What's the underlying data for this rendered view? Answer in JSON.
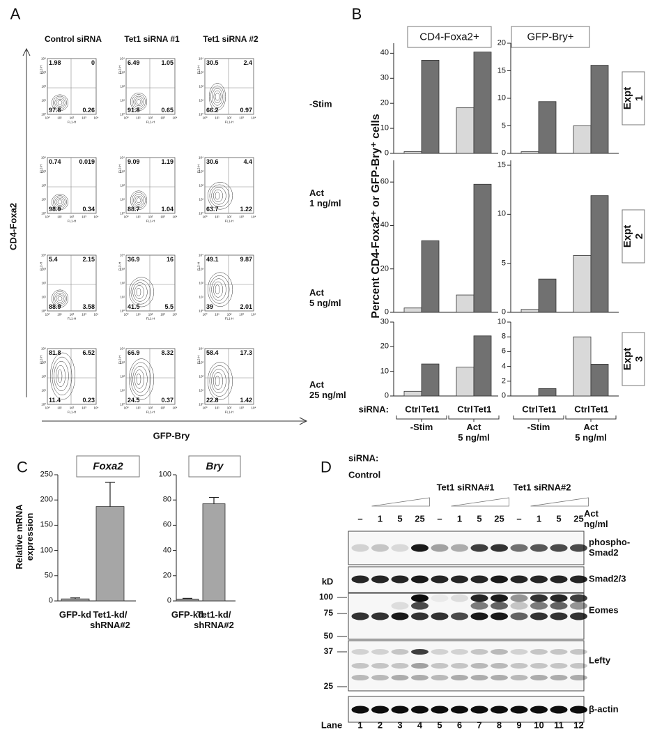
{
  "panel_a": {
    "label": "A",
    "columns": [
      "Control siRNA",
      "Tet1 siRNA #1",
      "Tet1 siRNA #2"
    ],
    "rows": [
      "-Stim",
      "Act\n1 ng/ml",
      "Act\n5 ng/ml",
      "Act\n25 ng/ml"
    ],
    "y_axis": "CD4-Foxa2",
    "x_axis": "GFP-Bry",
    "plot_x_label": "FL1-H",
    "plot_y_label": "FL2-H",
    "plot_ticks": [
      "10⁰",
      "10¹",
      "10²",
      "10³",
      "10⁴"
    ],
    "quadrants": [
      [
        [
          1.98,
          0,
          97.8,
          0.26
        ],
        [
          6.49,
          1.05,
          91.8,
          0.65
        ],
        [
          30.5,
          2.4,
          66.2,
          0.97
        ]
      ],
      [
        [
          0.74,
          0.019,
          98.9,
          0.34
        ],
        [
          9.09,
          1.19,
          88.7,
          1.04
        ],
        [
          30.6,
          4.4,
          63.7,
          1.22
        ]
      ],
      [
        [
          5.4,
          2.15,
          88.9,
          3.58
        ],
        [
          36.9,
          16,
          41.5,
          5.5
        ],
        [
          49.1,
          9.87,
          39,
          2.01
        ]
      ],
      [
        [
          81.8,
          6.52,
          11.4,
          0.23
        ],
        [
          66.9,
          8.32,
          24.5,
          0.37
        ],
        [
          58.4,
          17.3,
          22.8,
          1.42
        ]
      ]
    ]
  },
  "panel_b": {
    "label": "B",
    "y_label": "Percent CD4-Foxa2⁺ or GFP-Bry⁺ cells",
    "siRNA_label": "siRNA:"
  },
  "panel_c": {
    "label": "C"
  },
  "chart_data": [
    {
      "type": "bar",
      "title": "CD4-Foxa2+",
      "ylim": [
        0,
        44
      ],
      "yticks": [
        0,
        10,
        20,
        30,
        40
      ],
      "series": [
        {
          "color": "#d9d9d9",
          "values": [
            0.7,
            18.2
          ]
        },
        {
          "color": "#717171",
          "values": [
            37.2,
            40.5
          ]
        }
      ]
    },
    {
      "type": "bar",
      "title": "GFP-Bry+",
      "side_label": "Expt 1",
      "ylim": [
        0,
        20
      ],
      "yticks": [
        0,
        5,
        10,
        15,
        20
      ],
      "series": [
        {
          "color": "#d9d9d9",
          "values": [
            0.3,
            5.0
          ]
        },
        {
          "color": "#717171",
          "values": [
            9.4,
            16.0
          ]
        }
      ]
    },
    {
      "type": "bar",
      "ylim": [
        0,
        70
      ],
      "yticks": [
        0,
        20,
        40,
        60
      ],
      "series": [
        {
          "color": "#d9d9d9",
          "values": [
            2,
            8
          ]
        },
        {
          "color": "#717171",
          "values": [
            33,
            59
          ]
        }
      ]
    },
    {
      "type": "bar",
      "side_label": "Expt 2",
      "ylim": [
        0,
        15.5
      ],
      "yticks": [
        0,
        5,
        10,
        15
      ],
      "series": [
        {
          "color": "#d9d9d9",
          "values": [
            0.3,
            5.8
          ]
        },
        {
          "color": "#717171",
          "values": [
            3.4,
            11.9
          ]
        }
      ]
    },
    {
      "type": "bar",
      "ylim": [
        0,
        30
      ],
      "yticks": [
        0,
        10,
        20,
        30
      ],
      "categories": [
        "-Stim",
        "Act\n5 ng/ml"
      ],
      "series": [
        {
          "name": "Ctrl",
          "color": "#d9d9d9",
          "values": [
            1.9,
            11.7
          ]
        },
        {
          "name": "Tet1",
          "color": "#717171",
          "values": [
            13,
            24.4
          ]
        }
      ]
    },
    {
      "type": "bar",
      "side_label": "Expt 3",
      "ylim": [
        0,
        10
      ],
      "yticks": [
        0,
        2,
        4,
        6,
        8,
        10
      ],
      "categories": [
        "-Stim",
        "Act\n5 ng/ml"
      ],
      "series": [
        {
          "name": "Ctrl",
          "color": "#d9d9d9",
          "values": [
            0,
            8
          ]
        },
        {
          "name": "Tet1",
          "color": "#717171",
          "values": [
            1,
            4.3
          ]
        }
      ]
    },
    {
      "type": "bar",
      "title": "Foxa2",
      "y_label": "Relative mRNA\nexpression",
      "categories": [
        "GFP-kd",
        "Tet1-kd/\nshRNA#2"
      ],
      "values": [
        4,
        187
      ],
      "errors": [
        2,
        48
      ],
      "color": "#a6a6a6",
      "ylim": [
        0,
        250
      ],
      "yticks": [
        0,
        50,
        100,
        150,
        200,
        250
      ]
    },
    {
      "type": "bar",
      "title": "Bry",
      "categories": [
        "GFP-kd",
        "Tet1-kd/\nshRNA#2"
      ],
      "values": [
        1.5,
        77
      ],
      "errors": [
        0.5,
        5
      ],
      "color": "#a6a6a6",
      "ylim": [
        0,
        100
      ],
      "yticks": [
        0,
        20,
        40,
        60,
        80,
        100
      ]
    }
  ],
  "panel_d": {
    "label": "D",
    "siRNA_label": "siRNA:",
    "groups": [
      "Control",
      "Tet1 siRNA#1",
      "Tet1 siRNA#2"
    ],
    "act_label": "Act\nng/ml",
    "doses": [
      "–",
      "1",
      "5",
      "25"
    ],
    "blots": [
      "phospho-\nSmad2",
      "Smad2/3",
      "Eomes",
      "Lefty",
      "β-actin"
    ],
    "kd_label": "kD",
    "markers": [
      100,
      75,
      50,
      37,
      25
    ],
    "lane_label": "Lane",
    "lanes": [
      1,
      2,
      3,
      4,
      5,
      6,
      7,
      8,
      9,
      10,
      11,
      12
    ]
  }
}
